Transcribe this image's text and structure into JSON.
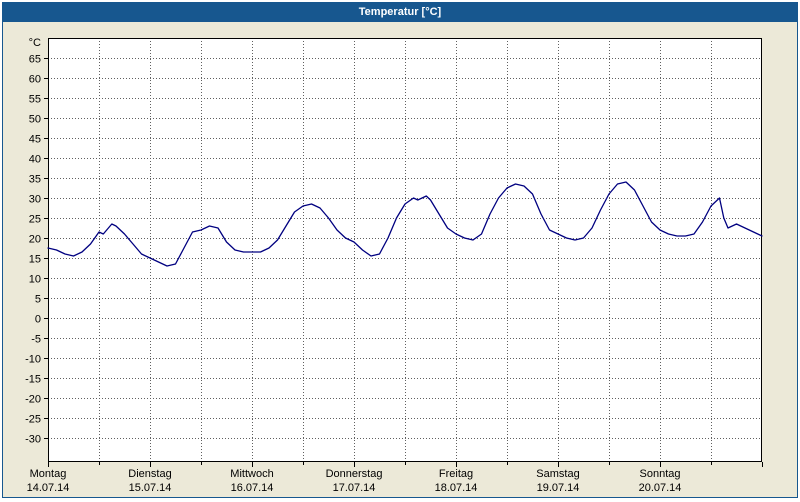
{
  "window": {
    "title": "Temperatur [°C]"
  },
  "colors": {
    "titlebar": "#17578F",
    "titlebar_text": "#FFFFFF",
    "panel_bg": "#ECE9D8",
    "plot_bg": "#FFFFFF",
    "plot_border": "#000000",
    "grid": "#606060",
    "line": "#000080",
    "text": "#000000"
  },
  "chart_data": {
    "type": "line",
    "title": "Temperatur [°C]",
    "ylabel": "°C",
    "legend": "none",
    "grid": "dotted",
    "y_axis": {
      "min": -36,
      "max": 70,
      "tick_start": -30,
      "tick_end": 65,
      "tick_step": 5
    },
    "x_axis": {
      "hours_total": 168,
      "grid_step_hours": 12,
      "day_tick_hours": 24,
      "days": [
        {
          "name": "Montag",
          "date": "14.07.14"
        },
        {
          "name": "Dienstag",
          "date": "15.07.14"
        },
        {
          "name": "Mittwoch",
          "date": "16.07.14"
        },
        {
          "name": "Donnerstag",
          "date": "17.07.14"
        },
        {
          "name": "Freitag",
          "date": "18.07.14"
        },
        {
          "name": "Samstag",
          "date": "19.07.14"
        },
        {
          "name": "Sonntag",
          "date": "20.07.14"
        }
      ]
    },
    "series": [
      {
        "name": "Temperatur",
        "color": "#000080",
        "points": [
          [
            0,
            17.5
          ],
          [
            2,
            17
          ],
          [
            4,
            16
          ],
          [
            6,
            15.5
          ],
          [
            8,
            16.5
          ],
          [
            10,
            18.5
          ],
          [
            12,
            21.5
          ],
          [
            13,
            21
          ],
          [
            15,
            23.5
          ],
          [
            16,
            23
          ],
          [
            18,
            21
          ],
          [
            20,
            18.5
          ],
          [
            22,
            16
          ],
          [
            24,
            15
          ],
          [
            26,
            14
          ],
          [
            28,
            13
          ],
          [
            30,
            13.5
          ],
          [
            32,
            17.5
          ],
          [
            34,
            21.5
          ],
          [
            36,
            22
          ],
          [
            38,
            23
          ],
          [
            40,
            22.5
          ],
          [
            42,
            19
          ],
          [
            44,
            17
          ],
          [
            46,
            16.5
          ],
          [
            48,
            16.5
          ],
          [
            50,
            16.5
          ],
          [
            52,
            17.5
          ],
          [
            54,
            19.5
          ],
          [
            56,
            23
          ],
          [
            58,
            26.5
          ],
          [
            60,
            28
          ],
          [
            62,
            28.5
          ],
          [
            64,
            27.5
          ],
          [
            66,
            25
          ],
          [
            68,
            22
          ],
          [
            70,
            20
          ],
          [
            72,
            19
          ],
          [
            74,
            17
          ],
          [
            76,
            15.5
          ],
          [
            78,
            16
          ],
          [
            80,
            20
          ],
          [
            82,
            25
          ],
          [
            84,
            28.5
          ],
          [
            86,
            30
          ],
          [
            87,
            29.5
          ],
          [
            89,
            30.5
          ],
          [
            90,
            29.5
          ],
          [
            92,
            26
          ],
          [
            94,
            22.5
          ],
          [
            96,
            21
          ],
          [
            98,
            20
          ],
          [
            100,
            19.5
          ],
          [
            102,
            21
          ],
          [
            104,
            26
          ],
          [
            106,
            30
          ],
          [
            108,
            32.5
          ],
          [
            110,
            33.5
          ],
          [
            112,
            33
          ],
          [
            114,
            31
          ],
          [
            116,
            26
          ],
          [
            118,
            22
          ],
          [
            120,
            21
          ],
          [
            122,
            20
          ],
          [
            124,
            19.5
          ],
          [
            126,
            20
          ],
          [
            128,
            22.5
          ],
          [
            130,
            27
          ],
          [
            132,
            31
          ],
          [
            134,
            33.5
          ],
          [
            136,
            34
          ],
          [
            138,
            32
          ],
          [
            140,
            28
          ],
          [
            142,
            24
          ],
          [
            144,
            22
          ],
          [
            146,
            21
          ],
          [
            148,
            20.5
          ],
          [
            150,
            20.5
          ],
          [
            152,
            21
          ],
          [
            154,
            24
          ],
          [
            156,
            28
          ],
          [
            158,
            30
          ],
          [
            159,
            25
          ],
          [
            160,
            22.5
          ],
          [
            162,
            23.5
          ],
          [
            164,
            22.5
          ],
          [
            166,
            21.5
          ],
          [
            168,
            20.5
          ]
        ]
      }
    ]
  }
}
